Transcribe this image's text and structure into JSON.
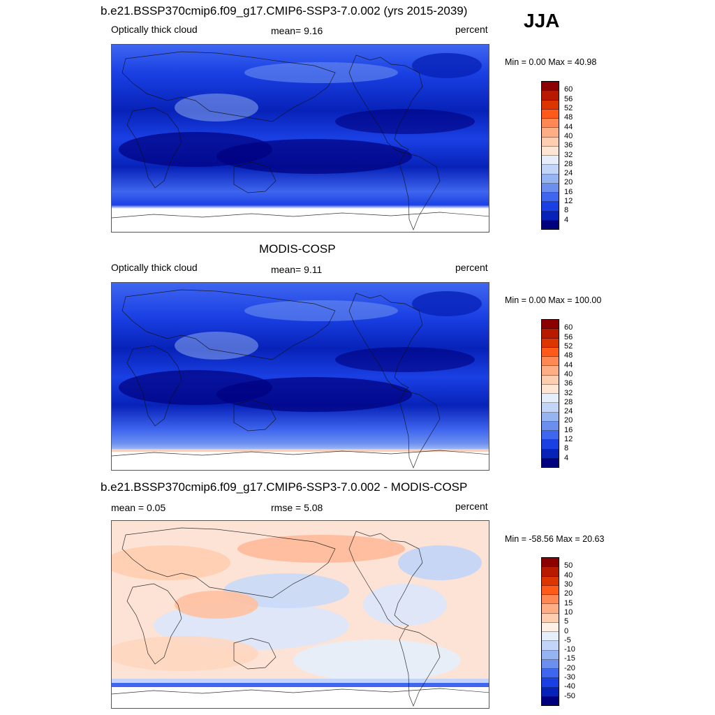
{
  "season": "JJA",
  "panels": [
    {
      "title": "b.e21.BSSP370cmip6.f09_g17.CMIP6-SSP3-7.0.002 (yrs 2015-2039)",
      "left_label": "Optically thick cloud",
      "center_label": "mean=   9.16",
      "right_label": "percent",
      "minmax": "Min =   0.00 Max =  40.98",
      "colorbar_labels": [
        "60",
        "56",
        "52",
        "48",
        "44",
        "40",
        "36",
        "32",
        "28",
        "24",
        "20",
        "16",
        "12",
        "8",
        "4"
      ],
      "colorbar_colors": [
        "#8b0000",
        "#b81a00",
        "#dd3500",
        "#ff5a1a",
        "#ff8855",
        "#ffad85",
        "#ffcdb0",
        "#ffe6d4",
        "#e6eefc",
        "#c2d4f8",
        "#97b4f2",
        "#6b8eef",
        "#3f66ef",
        "#1a40e4",
        "#0722b8",
        "#00007f"
      ],
      "map_type": "model"
    },
    {
      "title": "MODIS-COSP",
      "left_label": "Optically thick cloud",
      "center_label": "mean=   9.11",
      "right_label": "percent",
      "minmax": "Min =   0.00 Max = 100.00",
      "colorbar_labels": [
        "60",
        "56",
        "52",
        "48",
        "44",
        "40",
        "36",
        "32",
        "28",
        "24",
        "20",
        "16",
        "12",
        "8",
        "4"
      ],
      "colorbar_colors": [
        "#8b0000",
        "#b81a00",
        "#dd3500",
        "#ff5a1a",
        "#ff8855",
        "#ffad85",
        "#ffcdb0",
        "#ffe6d4",
        "#e6eefc",
        "#c2d4f8",
        "#97b4f2",
        "#6b8eef",
        "#3f66ef",
        "#1a40e4",
        "#0722b8",
        "#00007f"
      ],
      "map_type": "obs"
    },
    {
      "title": "b.e21.BSSP370cmip6.f09_g17.CMIP6-SSP3-7.0.002 - MODIS-COSP",
      "left_label": "mean =   0.05",
      "center_label": "rmse =   5.08",
      "right_label": "percent",
      "minmax": "Min = -58.56 Max =  20.63",
      "colorbar_labels": [
        "50",
        "40",
        "30",
        "20",
        "15",
        "10",
        "5",
        "0",
        "-5",
        "-10",
        "-15",
        "-20",
        "-30",
        "-40",
        "-50"
      ],
      "colorbar_colors": [
        "#8b0000",
        "#b81a00",
        "#dd3500",
        "#ff5a1a",
        "#ff8855",
        "#ffad85",
        "#ffcdb0",
        "#fff0e6",
        "#e6eefc",
        "#c2d4f8",
        "#97b4f2",
        "#6b8eef",
        "#3f66ef",
        "#1a40e4",
        "#0722b8",
        "#00007f"
      ],
      "map_type": "diff"
    }
  ]
}
